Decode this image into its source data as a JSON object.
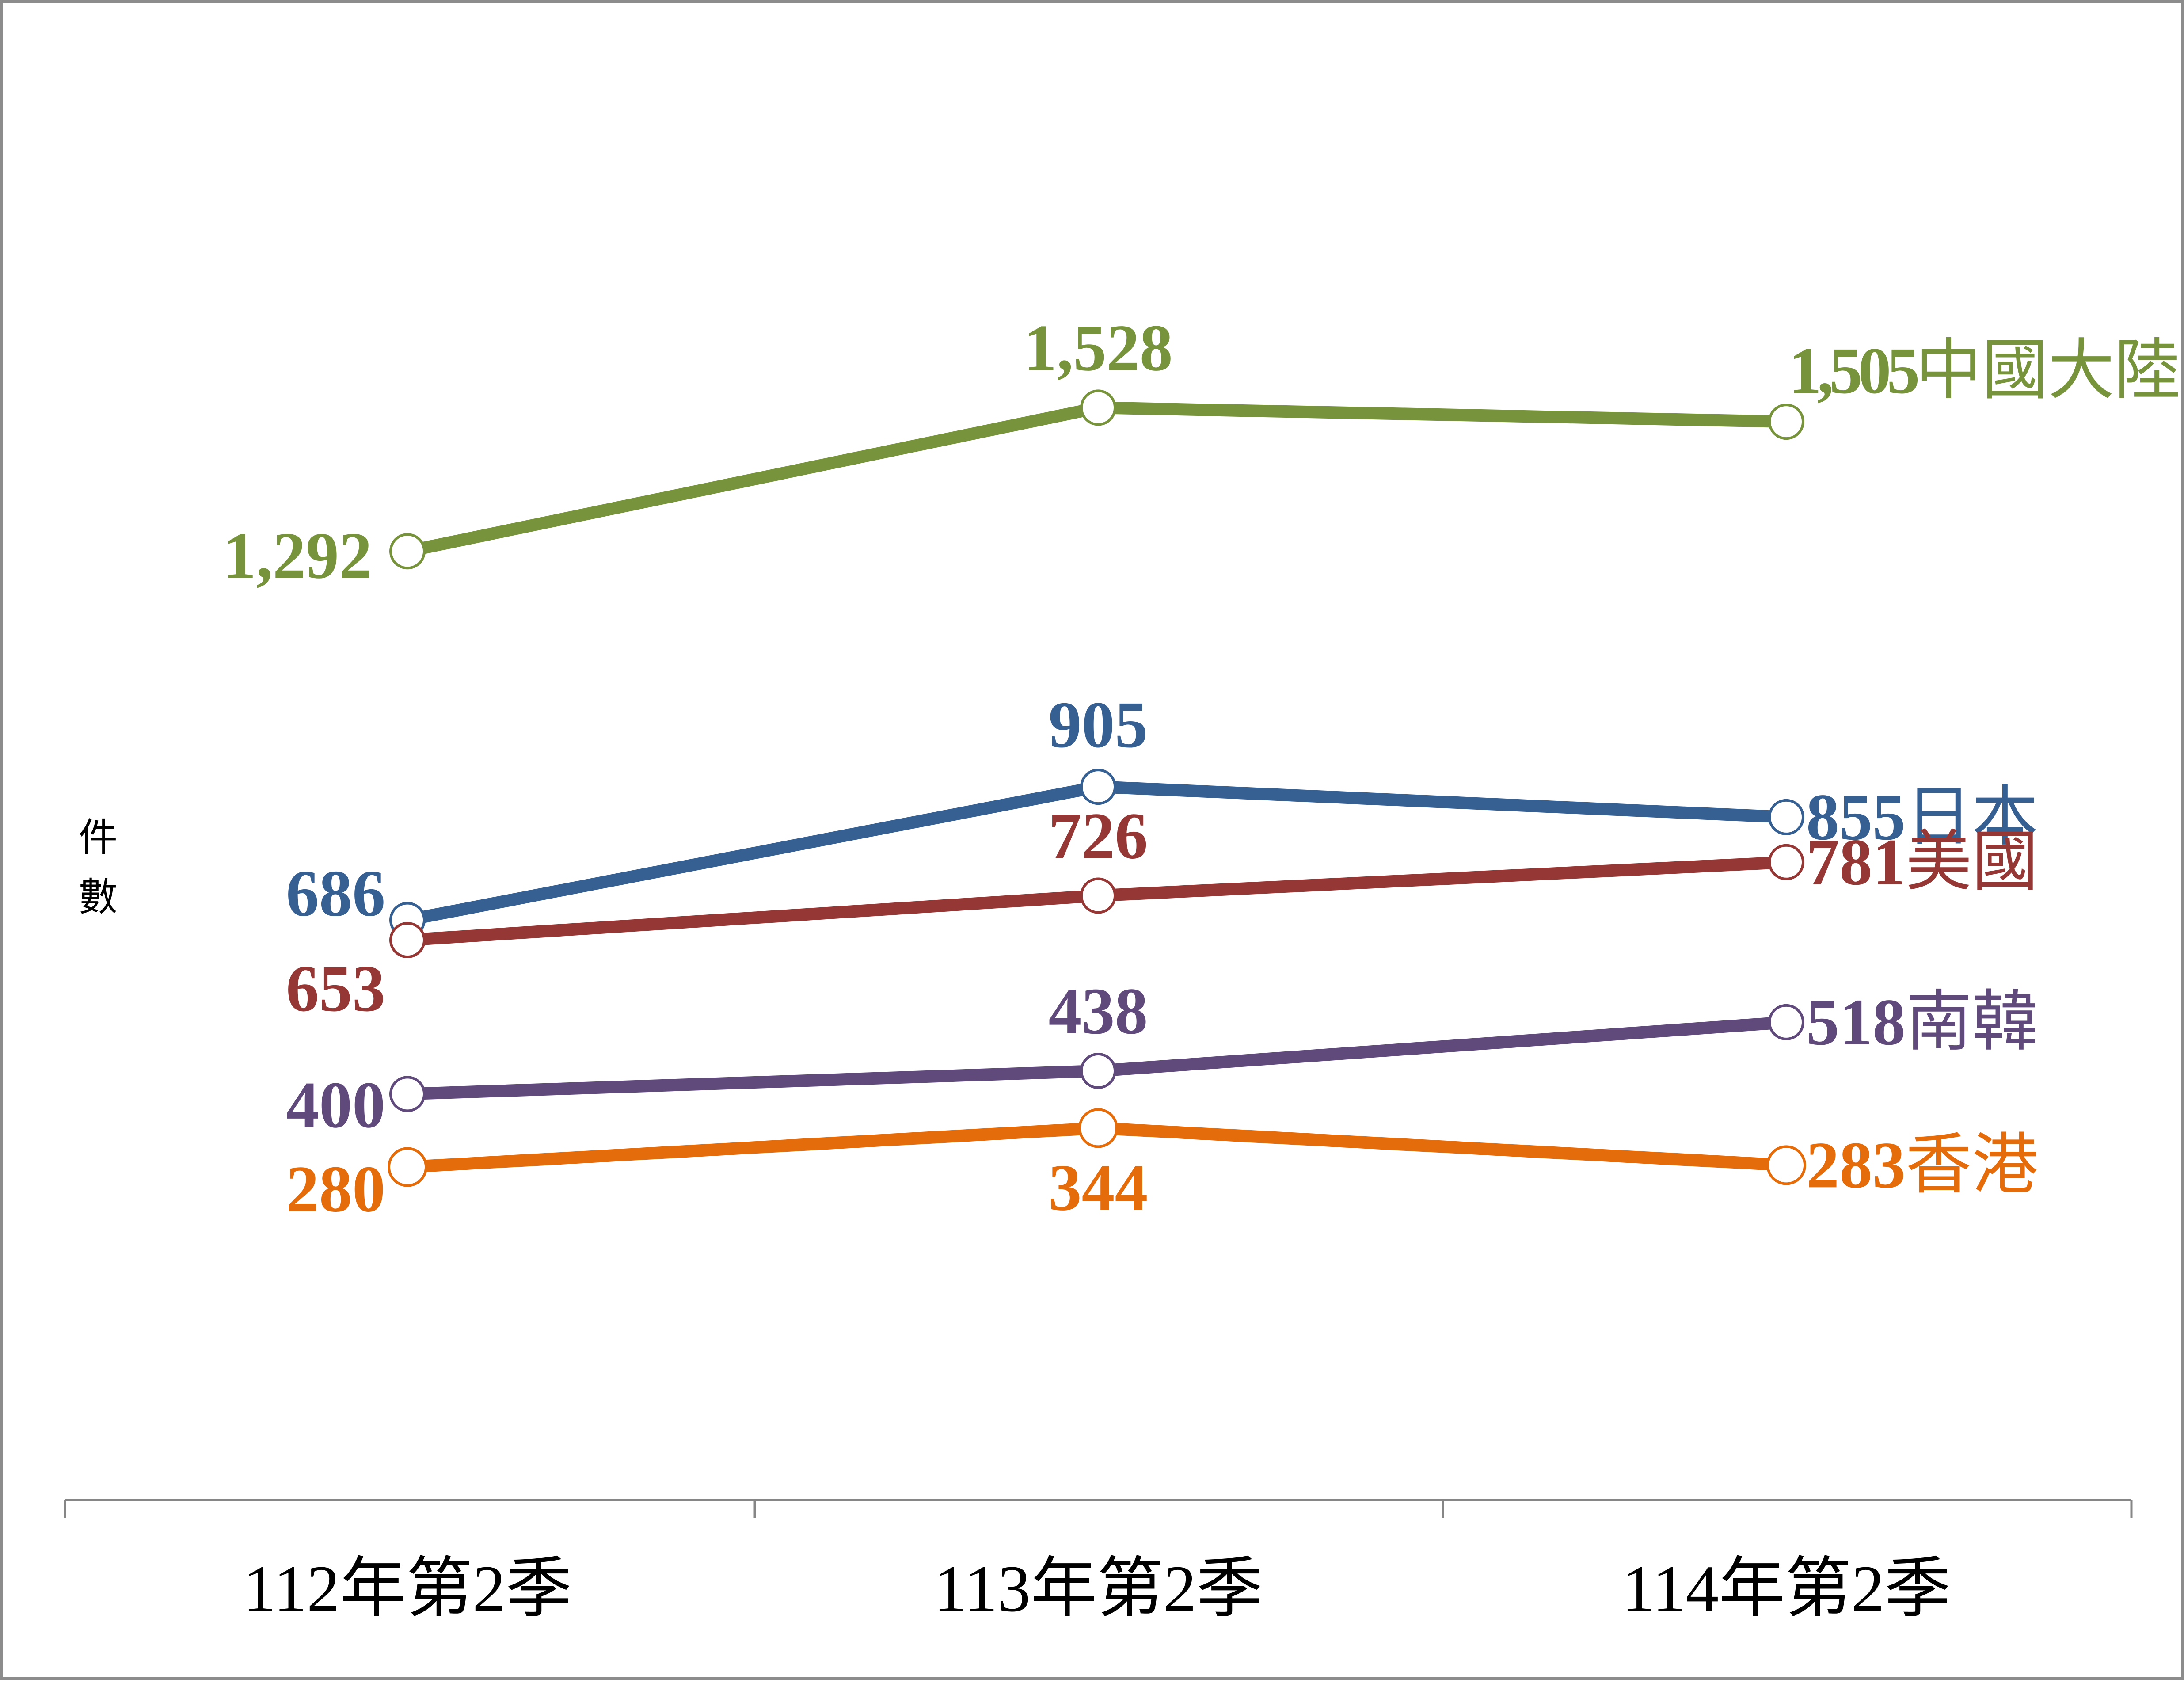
{
  "chart_data": {
    "type": "line",
    "categories": [
      "112年第2季",
      "113年第2季",
      "114年第2季"
    ],
    "ylabel": "件數",
    "ylabel_chars": [
      "件",
      "數"
    ],
    "xlabel": "",
    "grid": false,
    "legend": "none",
    "series": [
      {
        "name": "中國大陸",
        "color": "#77933c",
        "values": [
          1292,
          1528,
          1505
        ],
        "labels": [
          "1,292",
          "1,528",
          "1,505"
        ]
      },
      {
        "name": "日本",
        "color": "#376092",
        "values": [
          686,
          905,
          855
        ],
        "labels": [
          "686",
          "905",
          "855"
        ]
      },
      {
        "name": "美國",
        "color": "#953735",
        "values": [
          653,
          726,
          781
        ],
        "labels": [
          "653",
          "726",
          "781"
        ]
      },
      {
        "name": "南韓",
        "color": "#604a7b",
        "values": [
          400,
          438,
          518
        ],
        "labels": [
          "400",
          "438",
          "518"
        ]
      },
      {
        "name": "香港",
        "color": "#e46c0a",
        "values": [
          280,
          344,
          283
        ],
        "labels": [
          "280",
          "344",
          "283"
        ]
      }
    ]
  }
}
